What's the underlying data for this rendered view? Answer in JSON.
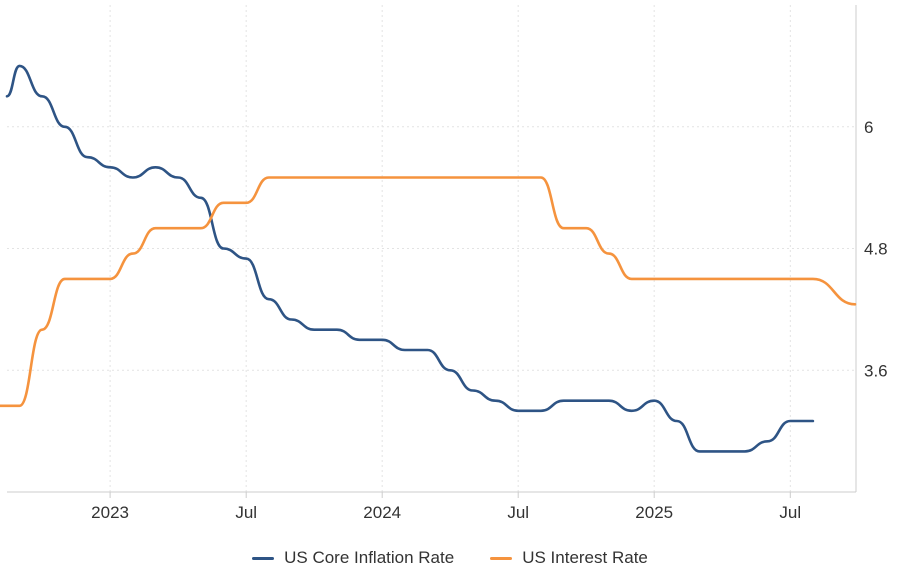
{
  "chart_data": {
    "type": "line",
    "title": "",
    "xlabel": "",
    "ylabel": "",
    "x_ticks": [
      "2023",
      "Jul",
      "2024",
      "Jul",
      "2025",
      "Jul"
    ],
    "y_ticks": [
      "6",
      "4.8",
      "3.6"
    ],
    "ylim": [
      2.4,
      7.2
    ],
    "xlim": [
      "2022-08",
      "2025-09"
    ],
    "grid": true,
    "legend_position": "bottom",
    "series": [
      {
        "name": "US Core Inflation Rate",
        "color": "#2e5485",
        "x": [
          "2022-08",
          "2022-09",
          "2022-10",
          "2022-11",
          "2022-12",
          "2023-01",
          "2023-02",
          "2023-03",
          "2023-04",
          "2023-05",
          "2023-06",
          "2023-07",
          "2023-08",
          "2023-09",
          "2023-10",
          "2023-11",
          "2023-12",
          "2024-01",
          "2024-02",
          "2024-03",
          "2024-04",
          "2024-05",
          "2024-06",
          "2024-07",
          "2024-08",
          "2024-09",
          "2024-10",
          "2024-11",
          "2024-12",
          "2025-01",
          "2025-02",
          "2025-03",
          "2025-04",
          "2025-05",
          "2025-06",
          "2025-07",
          "2025-08"
        ],
        "values": [
          6.3,
          6.6,
          6.3,
          6.0,
          5.7,
          5.6,
          5.5,
          5.6,
          5.5,
          5.3,
          4.8,
          4.7,
          4.3,
          4.1,
          4.0,
          4.0,
          3.9,
          3.9,
          3.8,
          3.8,
          3.6,
          3.4,
          3.3,
          3.2,
          3.2,
          3.3,
          3.3,
          3.3,
          3.2,
          3.3,
          3.1,
          2.8,
          2.8,
          2.8,
          2.9,
          3.1,
          3.1
        ]
      },
      {
        "name": "US Interest Rate",
        "color": "#f5933e",
        "x": [
          "2022-08",
          "2022-09",
          "2022-10",
          "2022-11",
          "2022-12",
          "2023-01",
          "2023-02",
          "2023-03",
          "2023-04",
          "2023-05",
          "2023-06",
          "2023-07",
          "2023-08",
          "2023-09",
          "2023-10",
          "2023-11",
          "2023-12",
          "2024-01",
          "2024-02",
          "2024-03",
          "2024-04",
          "2024-05",
          "2024-06",
          "2024-07",
          "2024-08",
          "2024-09",
          "2024-10",
          "2024-11",
          "2024-12",
          "2025-01",
          "2025-02",
          "2025-03",
          "2025-04",
          "2025-05",
          "2025-06",
          "2025-07",
          "2025-08",
          "2025-09"
        ],
        "values": [
          3.25,
          3.25,
          4.0,
          4.5,
          4.5,
          4.5,
          4.75,
          5.0,
          5.0,
          5.0,
          5.25,
          5.25,
          5.5,
          5.5,
          5.5,
          5.5,
          5.5,
          5.5,
          5.5,
          5.5,
          5.5,
          5.5,
          5.5,
          5.5,
          5.5,
          5.0,
          5.0,
          4.75,
          4.5,
          4.5,
          4.5,
          4.5,
          4.5,
          4.5,
          4.5,
          4.5,
          4.5,
          4.25
        ]
      }
    ]
  }
}
